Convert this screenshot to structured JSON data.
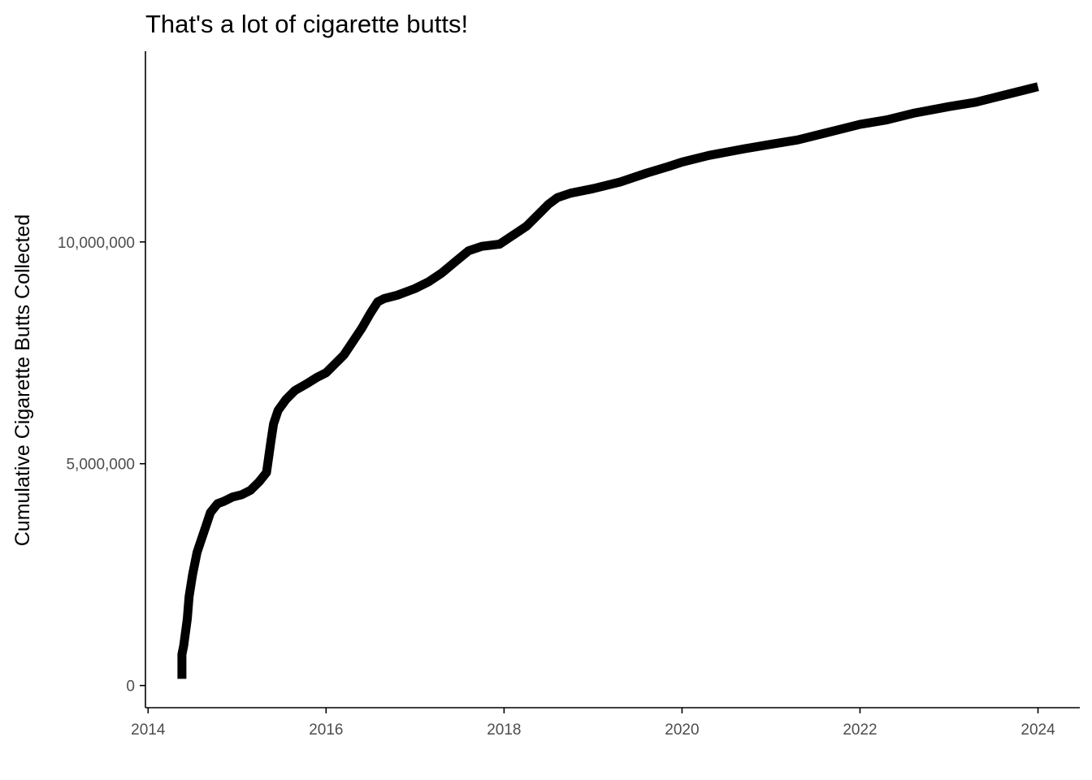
{
  "chart_data": {
    "type": "line",
    "title": "That's a lot of cigarette butts!",
    "xlabel": "",
    "ylabel": "Cumulative Cigarette Butts Collected",
    "xlim": [
      2013.97,
      2024.47
    ],
    "ylim": [
      -500000,
      14300000
    ],
    "x_ticks": [
      2014,
      2016,
      2018,
      2020,
      2022,
      2024
    ],
    "x_tick_labels": [
      "2014",
      "2016",
      "2018",
      "2020",
      "2022",
      "2024"
    ],
    "y_ticks": [
      0,
      5000000,
      10000000
    ],
    "y_tick_labels": [
      "0",
      "5,000,000",
      "10,000,000"
    ],
    "grid": false,
    "legend": "none",
    "line_color": "#000000",
    "series": [
      {
        "x": [
          2014.38,
          2014.38,
          2014.4,
          2014.44,
          2014.46,
          2014.5,
          2014.55,
          2014.6,
          2014.65,
          2014.7,
          2014.78,
          2014.85,
          2014.95,
          2015.05,
          2015.15,
          2015.25,
          2015.33,
          2015.38,
          2015.41,
          2015.46,
          2015.55,
          2015.65,
          2015.78,
          2015.9,
          2016.0,
          2016.1,
          2016.2,
          2016.3,
          2016.4,
          2016.5,
          2016.58,
          2016.65,
          2016.8,
          2017.0,
          2017.15,
          2017.3,
          2017.45,
          2017.6,
          2017.75,
          2017.95,
          2018.1,
          2018.25,
          2018.4,
          2018.5,
          2018.6,
          2018.75,
          2019.0,
          2019.3,
          2019.6,
          2019.85,
          2020.0,
          2020.3,
          2020.7,
          2021.0,
          2021.3,
          2021.6,
          2022.0,
          2022.3,
          2022.6,
          2023.0,
          2023.3,
          2023.5,
          2023.7,
          2024.0
        ],
        "y": [
          150000,
          700000,
          900000,
          1500000,
          2000000,
          2500000,
          3000000,
          3300000,
          3600000,
          3900000,
          4100000,
          4150000,
          4250000,
          4300000,
          4400000,
          4600000,
          4800000,
          5500000,
          5900000,
          6200000,
          6450000,
          6650000,
          6800000,
          6950000,
          7050000,
          7250000,
          7450000,
          7750000,
          8050000,
          8400000,
          8650000,
          8720000,
          8800000,
          8950000,
          9100000,
          9300000,
          9550000,
          9800000,
          9900000,
          9950000,
          10150000,
          10350000,
          10650000,
          10850000,
          11000000,
          11100000,
          11200000,
          11350000,
          11550000,
          11700000,
          11800000,
          11950000,
          12100000,
          12200000,
          12300000,
          12450000,
          12650000,
          12750000,
          12900000,
          13050000,
          13150000,
          13250000,
          13350000,
          13500000
        ]
      }
    ]
  }
}
